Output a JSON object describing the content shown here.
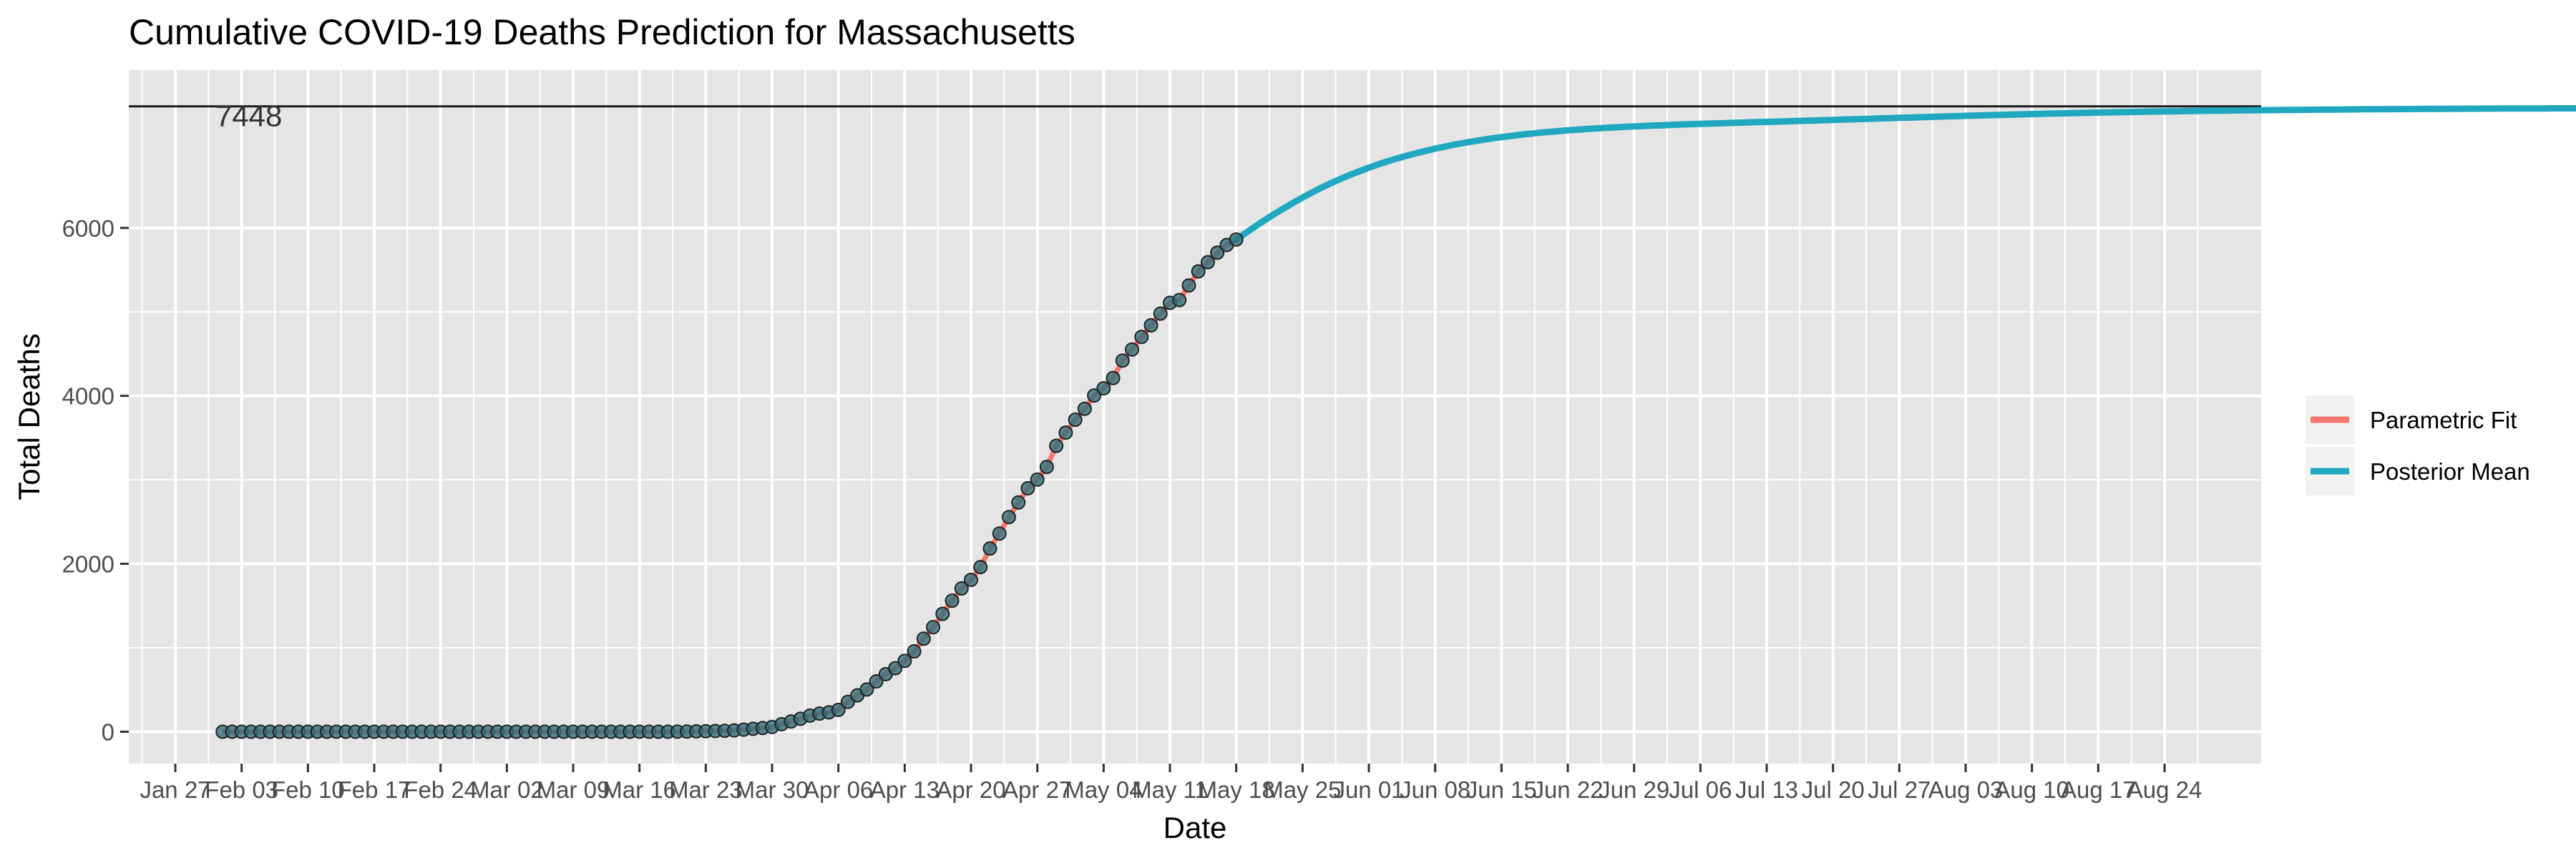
{
  "chart_data": {
    "type": "line",
    "title": "Cumulative COVID-19 Deaths Prediction for Massachusetts",
    "xlabel": "Date",
    "ylabel": "Total Deaths",
    "x_start_label": "Jan 22",
    "x_ticks": [
      "Jan 27",
      "Feb 03",
      "Feb 10",
      "Feb 17",
      "Feb 24",
      "Mar 02",
      "Mar 09",
      "Mar 16",
      "Mar 23",
      "Mar 30",
      "Apr 06",
      "Apr 13",
      "Apr 20",
      "Apr 27",
      "May 04",
      "May 11",
      "May 18",
      "May 25",
      "Jun 01",
      "Jun 08",
      "Jun 15",
      "Jun 22",
      "Jun 29",
      "Jul 06",
      "Jul 13",
      "Jul 20",
      "Jul 27",
      "Aug 03",
      "Aug 10",
      "Aug 17",
      "Aug 24"
    ],
    "y_ticks": [
      0,
      2000,
      4000,
      6000
    ],
    "ylim": [
      -380,
      7880
    ],
    "grid": true,
    "legend_position": "right",
    "hline": {
      "value": 7448,
      "label": "7448"
    },
    "colors": {
      "parametric_fit": "#f8766d",
      "posterior_mean": "#1fa8c0",
      "observed_fill": "#2f6f7a",
      "panel": "#e5e5e5",
      "grid": "#ffffff"
    },
    "legend": [
      {
        "label": "Parametric Fit",
        "color": "#f8766d"
      },
      {
        "label": "Posterior Mean",
        "color": "#1fa8c0"
      }
    ],
    "observed": {
      "x_start": "Feb 01",
      "y": [
        0,
        0,
        0,
        0,
        0,
        0,
        0,
        0,
        0,
        0,
        0,
        0,
        0,
        0,
        0,
        0,
        0,
        0,
        0,
        0,
        0,
        0,
        0,
        0,
        0,
        0,
        0,
        0,
        0,
        0,
        0,
        0,
        0,
        0,
        0,
        0,
        0,
        0,
        0,
        0,
        0,
        0,
        0,
        0,
        0,
        0,
        0,
        0,
        1,
        2,
        4,
        6,
        9,
        11,
        15,
        25,
        35,
        44,
        56,
        89,
        122,
        154,
        192,
        216,
        231,
        260,
        356,
        433,
        503,
        599,
        686,
        756,
        844,
        957,
        1108,
        1245,
        1404,
        1560,
        1706,
        1809,
        1961,
        2182,
        2360,
        2556,
        2730,
        2899,
        3003,
        3153,
        3405,
        3562,
        3716,
        3846,
        4004,
        4090,
        4212,
        4420,
        4552,
        4702,
        4840,
        4979,
        5108,
        5141,
        5315,
        5482,
        5592,
        5705,
        5797,
        5862
      ]
    },
    "posterior_mean": {
      "x_start": "May 18",
      "y": [
        5862,
        5940,
        6017,
        6092,
        6164,
        6233,
        6299,
        6362,
        6422,
        6479,
        6533,
        6583,
        6631,
        6675,
        6718,
        6757,
        6794,
        6828,
        6860,
        6890,
        6918,
        6944,
        6968,
        6991,
        7012,
        7031,
        7049,
        7066,
        7081,
        7095,
        7109,
        7121,
        7133,
        7143,
        7153,
        7162,
        7170,
        7178,
        7185,
        7192,
        7198,
        7204,
        7209,
        7214,
        7219,
        7223,
        7228,
        7232,
        7236,
        7239,
        7243,
        7246,
        7250,
        7253,
        7256,
        7260,
        7263,
        7266,
        7269,
        7273,
        7276,
        7279,
        7283,
        7286,
        7290,
        7293,
        7297,
        7300,
        7304,
        7307,
        7311,
        7314,
        7318,
        7321,
        7325,
        7328,
        7331,
        7335,
        7338,
        7341,
        7344,
        7347,
        7350,
        7353,
        7356,
        7359,
        7362,
        7364,
        7367,
        7369,
        7372,
        7374,
        7376,
        7378,
        7380,
        7382,
        7384,
        7386,
        7388,
        7389,
        7391,
        7393,
        7394,
        7396,
        7397,
        7398,
        7400,
        7401,
        7402,
        7403,
        7404,
        7405,
        7406,
        7407,
        7408,
        7409,
        7410,
        7411,
        7412,
        7413,
        7413,
        7414,
        7415,
        7416,
        7416,
        7417,
        7418,
        7418,
        7419,
        7419,
        7420,
        7420,
        7421,
        7421,
        7422,
        7422,
        7423,
        7423,
        7423,
        7424,
        7424,
        7424,
        7425,
        7425,
        7425,
        7426,
        7426,
        7426,
        7426,
        7427,
        7427,
        7427,
        7427,
        7427,
        7428,
        7428,
        7428,
        7428,
        7428,
        7429,
        7429,
        7429,
        7429,
        7429,
        7429,
        7429,
        7430,
        7430,
        7430,
        7430,
        7430,
        7430,
        7430,
        7430,
        7430,
        7430,
        7430,
        7431,
        7431,
        7431,
        7431,
        7431,
        7431,
        7431,
        7431,
        7431,
        7431,
        7431,
        7431,
        7431,
        7431
      ]
    }
  }
}
